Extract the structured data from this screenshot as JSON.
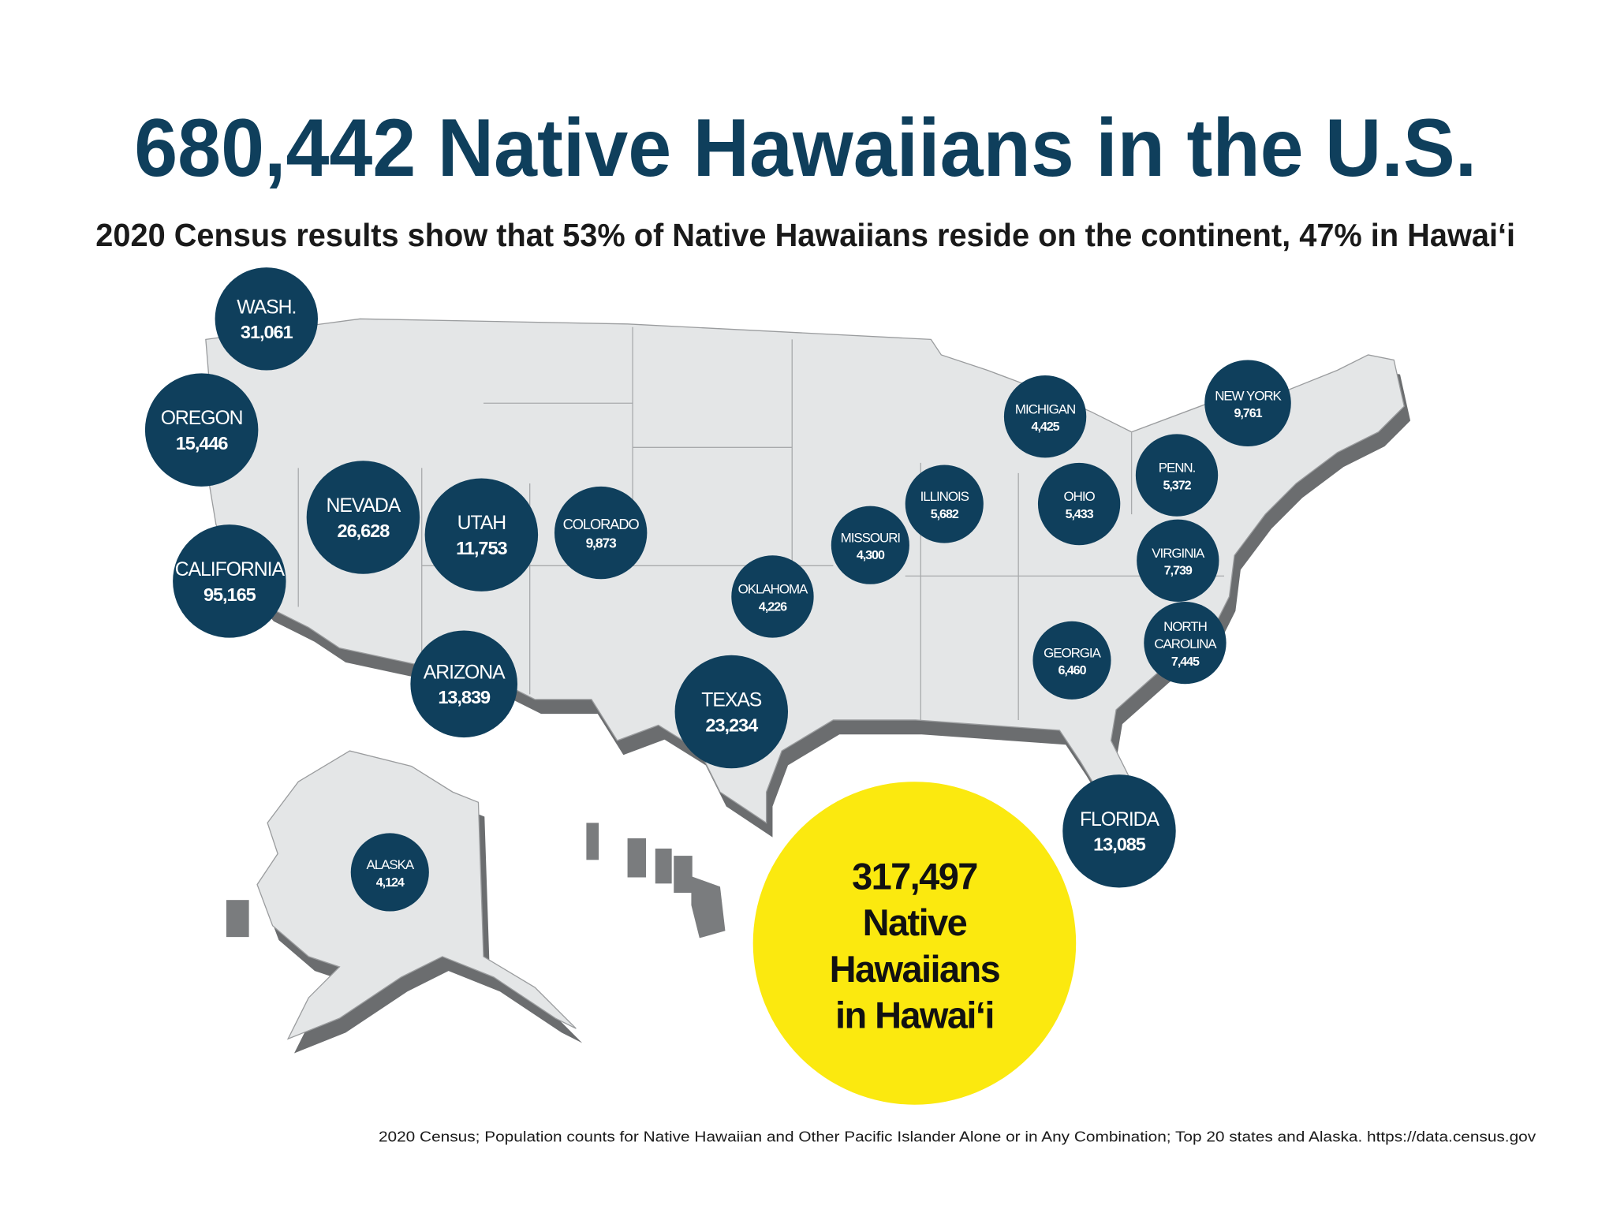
{
  "header": {
    "title": "680,442 Native Hawaiians in the U.S.",
    "subtitle": "2020 Census results show that 53% of Native Hawaiians reside on the continent, 47% in Hawaiʻi"
  },
  "states": [
    {
      "name": [
        "WASH."
      ],
      "value": "31,061"
    },
    {
      "name": [
        "OREGON"
      ],
      "value": "15,446"
    },
    {
      "name": [
        "CALIFORNIA"
      ],
      "value": "95,165"
    },
    {
      "name": [
        "NEVADA"
      ],
      "value": "26,628"
    },
    {
      "name": [
        "UTAH"
      ],
      "value": "11,753"
    },
    {
      "name": [
        "COLORADO"
      ],
      "value": "9,873"
    },
    {
      "name": [
        "ARIZONA"
      ],
      "value": "13,839"
    },
    {
      "name": [
        "TEXAS"
      ],
      "value": "23,234"
    },
    {
      "name": [
        "OKLAHOMA"
      ],
      "value": "4,226"
    },
    {
      "name": [
        "MISSOURI"
      ],
      "value": "4,300"
    },
    {
      "name": [
        "ILLINOIS"
      ],
      "value": "5,682"
    },
    {
      "name": [
        "MICHIGAN"
      ],
      "value": "4,425"
    },
    {
      "name": [
        "OHIO"
      ],
      "value": "5,433"
    },
    {
      "name": [
        "NEW YORK"
      ],
      "value": "9,761"
    },
    {
      "name": [
        "PENN."
      ],
      "value": "5,372"
    },
    {
      "name": [
        "VIRGINIA"
      ],
      "value": "7,739"
    },
    {
      "name": [
        "NORTH",
        "CAROLINA"
      ],
      "value": "7,445"
    },
    {
      "name": [
        "GEORGIA"
      ],
      "value": "6,460"
    },
    {
      "name": [
        "FLORIDA"
      ],
      "value": "13,085"
    },
    {
      "name": [
        "ALASKA"
      ],
      "value": "4,124"
    }
  ],
  "hawaii": {
    "lines": [
      "317,497",
      "Native",
      "Hawaiians",
      "in Hawaiʻi"
    ]
  },
  "footnote": "2020 Census; Population counts for Native Hawaiian and Other Pacific Islander Alone or in Any Combination; Top 20 states and Alaska. https://data.census.gov"
}
